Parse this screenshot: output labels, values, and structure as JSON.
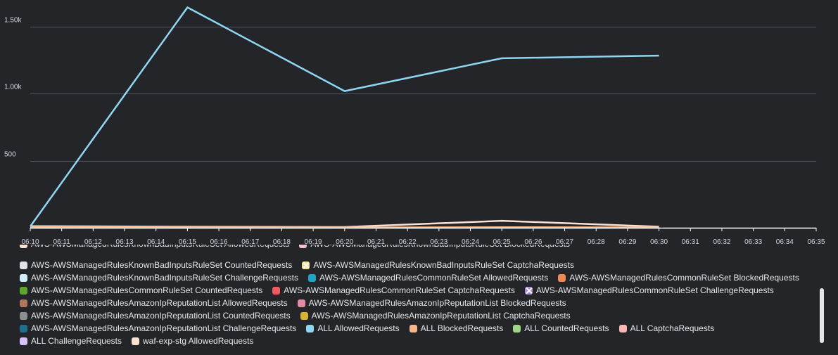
{
  "chart_data": {
    "type": "line",
    "title": "",
    "xlabel": "",
    "ylabel": "",
    "ylim": [
      0,
      1700
    ],
    "y_ticks": [
      {
        "value": 500,
        "label": "500"
      },
      {
        "value": 1000,
        "label": "1.00k"
      },
      {
        "value": 1500,
        "label": "1.50k"
      }
    ],
    "x": [
      "06:10",
      "06:11",
      "06:12",
      "06:13",
      "06:14",
      "06:15",
      "06:16",
      "06:17",
      "06:18",
      "06:19",
      "06:20",
      "06:21",
      "06:22",
      "06:23",
      "06:24",
      "06:25",
      "06:26",
      "06:27",
      "06:28",
      "06:29",
      "06:30",
      "06:31",
      "06:32",
      "06:33",
      "06:34",
      "06:35"
    ],
    "grid": true,
    "series": [
      {
        "name": "ALL AllowedRequests",
        "color": "#8fd6f2",
        "points": [
          [
            0,
            10
          ],
          [
            5,
            1645
          ],
          [
            10,
            1020
          ],
          [
            15,
            1265
          ],
          [
            20,
            1285
          ]
        ]
      },
      {
        "name": "ALL BlockedRequests",
        "color": "#f7b58a",
        "points": [
          [
            0,
            5
          ],
          [
            5,
            3
          ],
          [
            10,
            2
          ],
          [
            15,
            4
          ],
          [
            20,
            2
          ]
        ]
      },
      {
        "name": "waf-exp-stg AllowedRequests",
        "color": "#fde2d2",
        "points": [
          [
            0,
            12
          ],
          [
            5,
            8
          ],
          [
            10,
            5
          ],
          [
            15,
            52
          ],
          [
            20,
            8
          ]
        ]
      }
    ],
    "legend": {
      "placement": "bottom",
      "partial_top_row": [
        {
          "label": "AWS-AWSManagedRulesKnownBadInputsRuleSet AllowedRequests",
          "color": "#fde2d2"
        },
        {
          "label": "AWS-AWSManagedRulesKnownBadInputsRuleSet BlockedRequests",
          "color": "#f4c0d1"
        }
      ],
      "items": [
        {
          "label": "AWS-AWSManagedRulesKnownBadInputsRuleSet CountedRequests",
          "color": "#dfe3e8",
          "hidden": false
        },
        {
          "label": "AWS-AWSManagedRulesKnownBadInputsRuleSet CaptchaRequests",
          "color": "#f5e28a",
          "hidden": true
        },
        {
          "label": "AWS-AWSManagedRulesKnownBadInputsRuleSet ChallengeRequests",
          "color": "#cdeefb",
          "hidden": false
        },
        {
          "label": "AWS-AWSManagedRulesCommonRuleSet AllowedRequests",
          "color": "#23a2c9",
          "hidden": false
        },
        {
          "label": "AWS-AWSManagedRulesCommonRuleSet BlockedRequests",
          "color": "#ef8b51",
          "hidden": false
        },
        {
          "label": "AWS-AWSManagedRulesCommonRuleSet CountedRequests",
          "color": "#5ea62f",
          "hidden": false
        },
        {
          "label": "AWS-AWSManagedRulesCommonRuleSet CaptchaRequests",
          "color": "#ef5b64",
          "hidden": false
        },
        {
          "label": "AWS-AWSManagedRulesCommonRuleSet ChallengeRequests",
          "color": "#a78bdb",
          "hidden": true
        },
        {
          "label": "AWS-AWSManagedRulesAmazonIpReputationList AllowedRequests",
          "color": "#b0765d",
          "hidden": false
        },
        {
          "label": "AWS-AWSManagedRulesAmazonIpReputationList BlockedRequests",
          "color": "#e58aa5",
          "hidden": false
        },
        {
          "label": "AWS-AWSManagedRulesAmazonIpReputationList CountedRequests",
          "color": "#8c9190",
          "hidden": false
        },
        {
          "label": "AWS-AWSManagedRulesAmazonIpReputationList CaptchaRequests",
          "color": "#d7b232",
          "hidden": false
        },
        {
          "label": "AWS-AWSManagedRulesAmazonIpReputationList ChallengeRequests",
          "color": "#1e6f8f",
          "hidden": false
        },
        {
          "label": "ALL AllowedRequests",
          "color": "#8fd6f2",
          "hidden": false
        },
        {
          "label": "ALL BlockedRequests",
          "color": "#f7b58a",
          "hidden": false
        },
        {
          "label": "ALL CountedRequests",
          "color": "#9fd588",
          "hidden": false
        },
        {
          "label": "ALL CaptchaRequests",
          "color": "#f9b7b2",
          "hidden": false
        },
        {
          "label": "ALL ChallengeRequests",
          "color": "#d6c2f7",
          "hidden": false
        },
        {
          "label": "waf-exp-stg AllowedRequests",
          "color": "#fde2d2",
          "hidden": false
        }
      ]
    }
  }
}
